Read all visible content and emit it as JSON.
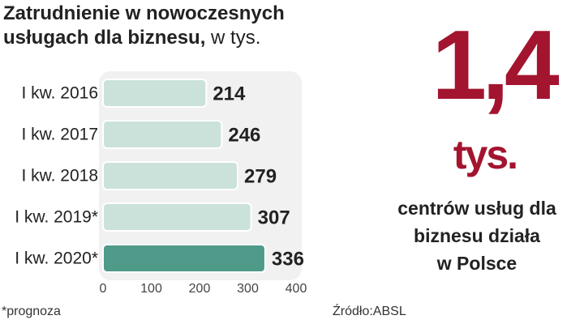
{
  "chart_data": {
    "type": "barh",
    "title": "Zatrudnienie w nowoczesnych usługach dla biznesu,",
    "unit": "w tys.",
    "categories": [
      "I kw. 2016",
      "I kw. 2017",
      "I kw. 2018",
      "I kw. 2019*",
      "I kw. 2020*"
    ],
    "values": [
      214,
      246,
      279,
      307,
      336
    ],
    "colors": [
      "#cbe2da",
      "#cbe2da",
      "#cbe2da",
      "#cbe2da",
      "#4f9a89"
    ],
    "xlim": [
      0,
      400
    ],
    "xticks": [
      0,
      100,
      200,
      300,
      400
    ],
    "footnote": "*prognoza",
    "source": "Źródło:ABSL"
  },
  "highlight": {
    "value": "1,4",
    "unit": "tys.",
    "lines": [
      "centrów usług dla",
      "biznesu działa",
      "w Polsce"
    ],
    "color": "#a3142f"
  }
}
